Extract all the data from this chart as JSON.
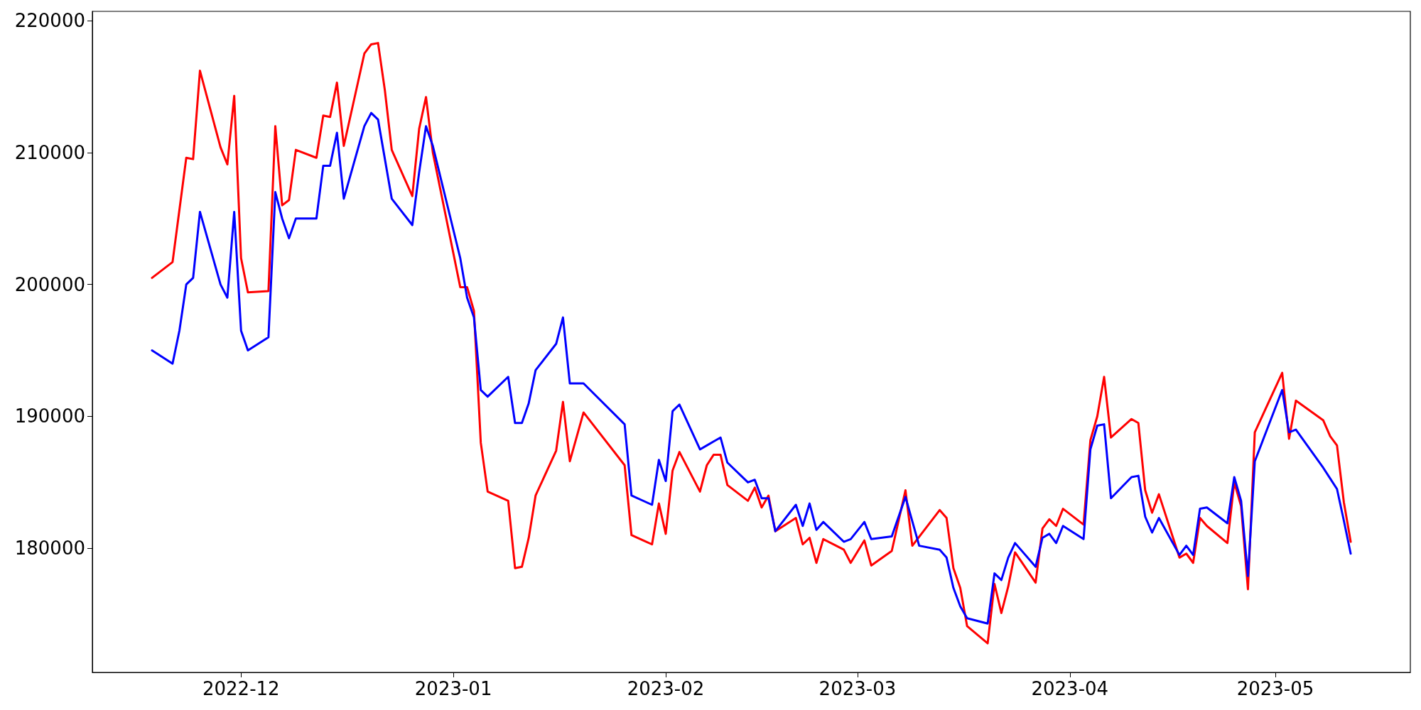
{
  "chart_data": {
    "type": "line",
    "xlim": [
      "2022-11-09T07:00",
      "2023-05-20T17:00"
    ],
    "xticks": [
      {
        "value": "2022-12-01",
        "label": "2022-12"
      },
      {
        "value": "2023-01-01",
        "label": "2023-01"
      },
      {
        "value": "2023-02-01",
        "label": "2023-02"
      },
      {
        "value": "2023-03-01",
        "label": "2023-03"
      },
      {
        "value": "2023-04-01",
        "label": "2023-04"
      },
      {
        "value": "2023-05-01",
        "label": "2023-05"
      }
    ],
    "ylim": [
      170600,
      220700
    ],
    "yticks": [
      180000,
      190000,
      200000,
      210000,
      220000
    ],
    "grid": false,
    "marker": "none",
    "line_style": "solid",
    "series": [
      {
        "color": "#ff0000",
        "x": [
          "2022-11-18",
          "2022-11-21",
          "2022-11-23",
          "2022-11-24",
          "2022-11-25",
          "2022-11-28",
          "2022-11-29",
          "2022-11-30",
          "2022-12-01",
          "2022-12-02",
          "2022-12-05",
          "2022-12-06",
          "2022-12-07",
          "2022-12-08",
          "2022-12-09",
          "2022-12-12",
          "2022-12-13",
          "2022-12-14",
          "2022-12-15",
          "2022-12-16",
          "2022-12-19",
          "2022-12-20",
          "2022-12-21",
          "2022-12-22",
          "2022-12-23",
          "2022-12-26",
          "2022-12-27",
          "2022-12-28",
          "2022-12-29",
          "2023-01-02",
          "2023-01-03",
          "2023-01-04",
          "2023-01-05",
          "2023-01-06",
          "2023-01-09",
          "2023-01-10",
          "2023-01-11",
          "2023-01-12",
          "2023-01-13",
          "2023-01-16",
          "2023-01-17",
          "2023-01-18",
          "2023-01-20",
          "2023-01-26",
          "2023-01-27",
          "2023-01-30",
          "2023-01-31",
          "2023-02-01",
          "2023-02-02",
          "2023-02-03",
          "2023-02-06",
          "2023-02-07",
          "2023-02-08",
          "2023-02-09",
          "2023-02-10",
          "2023-02-13",
          "2023-02-14",
          "2023-02-15",
          "2023-02-16",
          "2023-02-17",
          "2023-02-20",
          "2023-02-21",
          "2023-02-22",
          "2023-02-23",
          "2023-02-24",
          "2023-02-27",
          "2023-02-28",
          "2023-03-02",
          "2023-03-03",
          "2023-03-06",
          "2023-03-08",
          "2023-03-09",
          "2023-03-13",
          "2023-03-14",
          "2023-03-15",
          "2023-03-16",
          "2023-03-17",
          "2023-03-20",
          "2023-03-21",
          "2023-03-22",
          "2023-03-23",
          "2023-03-24",
          "2023-03-27",
          "2023-03-28",
          "2023-03-29",
          "2023-03-30",
          "2023-03-31",
          "2023-04-03",
          "2023-04-04",
          "2023-04-05",
          "2023-04-06",
          "2023-04-07",
          "2023-04-10",
          "2023-04-11",
          "2023-04-12",
          "2023-04-13",
          "2023-04-14",
          "2023-04-17",
          "2023-04-18",
          "2023-04-19",
          "2023-04-20",
          "2023-04-21",
          "2023-04-24",
          "2023-04-25",
          "2023-04-26",
          "2023-04-27",
          "2023-04-28",
          "2023-05-02",
          "2023-05-03",
          "2023-05-04",
          "2023-05-08",
          "2023-05-09",
          "2023-05-10",
          "2023-05-11",
          "2023-05-12"
        ],
        "values": [
          200500,
          201700,
          209600,
          209500,
          216200,
          210400,
          209100,
          214300,
          202000,
          199400,
          199500,
          212000,
          206000,
          206400,
          210200,
          209600,
          212800,
          212700,
          215300,
          210500,
          217500,
          218200,
          218300,
          214700,
          210200,
          206700,
          211800,
          214200,
          210000,
          199800,
          199800,
          198000,
          188000,
          184300,
          183600,
          178500,
          178600,
          180800,
          184000,
          187400,
          191100,
          186600,
          190300,
          186300,
          181000,
          180300,
          183400,
          181100,
          185900,
          187300,
          184300,
          186300,
          187100,
          187100,
          184800,
          183600,
          184600,
          183100,
          184000,
          181300,
          182300,
          180300,
          180800,
          178900,
          180700,
          179900,
          178900,
          180600,
          178700,
          179800,
          184400,
          180200,
          182900,
          182300,
          178500,
          177000,
          174100,
          172800,
          177300,
          175100,
          177100,
          179700,
          177400,
          181500,
          182200,
          181700,
          183000,
          181800,
          188200,
          190000,
          193000,
          188400,
          189800,
          189500,
          184400,
          182700,
          184100,
          179300,
          179600,
          178900,
          182300,
          181700,
          180400,
          185000,
          183200,
          176900,
          188800,
          193300,
          188300,
          191200,
          189700,
          188500,
          187800,
          183500,
          180500
        ]
      },
      {
        "color": "#0000ff",
        "x": [
          "2022-11-18",
          "2022-11-21",
          "2022-11-22",
          "2022-11-23",
          "2022-11-24",
          "2022-11-25",
          "2022-11-28",
          "2022-11-29",
          "2022-11-30",
          "2022-12-01",
          "2022-12-02",
          "2022-12-05",
          "2022-12-06",
          "2022-12-07",
          "2022-12-08",
          "2022-12-09",
          "2022-12-12",
          "2022-12-13",
          "2022-12-14",
          "2022-12-15",
          "2022-12-16",
          "2022-12-19",
          "2022-12-20",
          "2022-12-21",
          "2022-12-22",
          "2022-12-23",
          "2022-12-26",
          "2022-12-27",
          "2022-12-28",
          "2022-12-29",
          "2023-01-02",
          "2023-01-03",
          "2023-01-04",
          "2023-01-05",
          "2023-01-06",
          "2023-01-09",
          "2023-01-10",
          "2023-01-11",
          "2023-01-12",
          "2023-01-13",
          "2023-01-16",
          "2023-01-17",
          "2023-01-18",
          "2023-01-20",
          "2023-01-26",
          "2023-01-27",
          "2023-01-30",
          "2023-01-31",
          "2023-02-01",
          "2023-02-02",
          "2023-02-03",
          "2023-02-06",
          "2023-02-07",
          "2023-02-08",
          "2023-02-09",
          "2023-02-10",
          "2023-02-13",
          "2023-02-14",
          "2023-02-15",
          "2023-02-16",
          "2023-02-17",
          "2023-02-20",
          "2023-02-21",
          "2023-02-22",
          "2023-02-23",
          "2023-02-24",
          "2023-02-27",
          "2023-02-28",
          "2023-03-02",
          "2023-03-03",
          "2023-03-06",
          "2023-03-08",
          "2023-03-10",
          "2023-03-13",
          "2023-03-14",
          "2023-03-15",
          "2023-03-16",
          "2023-03-17",
          "2023-03-20",
          "2023-03-21",
          "2023-03-22",
          "2023-03-23",
          "2023-03-24",
          "2023-03-27",
          "2023-03-28",
          "2023-03-29",
          "2023-03-30",
          "2023-03-31",
          "2023-04-03",
          "2023-04-04",
          "2023-04-05",
          "2023-04-06",
          "2023-04-07",
          "2023-04-10",
          "2023-04-11",
          "2023-04-12",
          "2023-04-13",
          "2023-04-14",
          "2023-04-17",
          "2023-04-18",
          "2023-04-19",
          "2023-04-20",
          "2023-04-21",
          "2023-04-24",
          "2023-04-25",
          "2023-04-26",
          "2023-04-27",
          "2023-04-28",
          "2023-05-02",
          "2023-05-03",
          "2023-05-04",
          "2023-05-08",
          "2023-05-09",
          "2023-05-10",
          "2023-05-11",
          "2023-05-12"
        ],
        "values": [
          195000,
          194000,
          196500,
          200000,
          200500,
          205500,
          200000,
          199000,
          205500,
          196500,
          195000,
          196000,
          207000,
          205000,
          203500,
          205000,
          205000,
          209000,
          209000,
          211500,
          206500,
          212000,
          213000,
          212500,
          209500,
          206500,
          204500,
          208500,
          212000,
          210500,
          202000,
          199000,
          197500,
          192000,
          191500,
          193000,
          189500,
          189500,
          191000,
          193500,
          195500,
          197500,
          192500,
          192500,
          189400,
          184000,
          183300,
          186700,
          185100,
          190400,
          190900,
          187500,
          187800,
          188100,
          188400,
          186500,
          185000,
          185200,
          183800,
          183800,
          181300,
          183300,
          181700,
          183400,
          181400,
          182000,
          180500,
          180700,
          182000,
          180700,
          180900,
          183900,
          180200,
          179900,
          179300,
          177000,
          175600,
          174700,
          174300,
          178100,
          177600,
          179300,
          180400,
          178600,
          180800,
          181100,
          180400,
          181700,
          180700,
          187500,
          189300,
          189400,
          183800,
          185400,
          185500,
          182400,
          181200,
          182300,
          179500,
          180200,
          179500,
          183000,
          183100,
          181900,
          185400,
          183600,
          177900,
          186600,
          192000,
          188800,
          189000,
          186100,
          185300,
          184500,
          182100,
          179600
        ]
      }
    ]
  }
}
